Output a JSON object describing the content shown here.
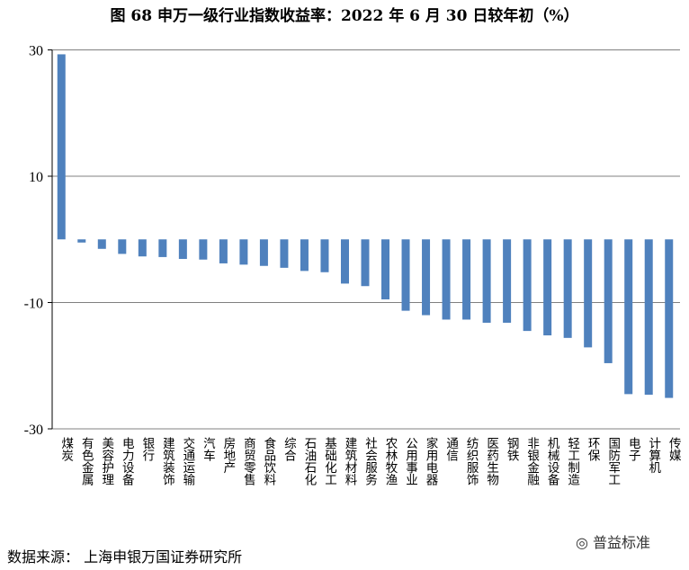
{
  "source": "数据来源：  上海申银万国证券研究所",
  "watermark": "普益标准",
  "chart_data": {
    "type": "bar",
    "title": "图 68  申万一级行业指数收益率：2022 年 6 月 30 日较年初（%）",
    "xlabel": "",
    "ylabel": "",
    "ylim": [
      -30,
      30
    ],
    "yticks": [
      30,
      10,
      -10,
      -30
    ],
    "grid": true,
    "bar_color": "#4f81bd",
    "categories": [
      "煤炭",
      "有色金属",
      "美容护理",
      "电力设备",
      "银行",
      "建筑装饰",
      "交通运输",
      "汽车",
      "房地产",
      "商贸零售",
      "食品饮料",
      "综合",
      "石油石化",
      "基础化工",
      "建筑材料",
      "社会服务",
      "农林牧渔",
      "公用事业",
      "家用电器",
      "通信",
      "纺织服饰",
      "医药生物",
      "钢铁",
      "非银金融",
      "机械设备",
      "轻工制造",
      "环保",
      "国防军工",
      "电子",
      "计算机",
      "传媒"
    ],
    "values": [
      29.3,
      -0.5,
      -1.5,
      -2.3,
      -2.7,
      -2.8,
      -3.1,
      -3.2,
      -3.8,
      -4.0,
      -4.2,
      -4.5,
      -5.0,
      -5.2,
      -7.0,
      -7.4,
      -9.5,
      -11.3,
      -12.0,
      -12.7,
      -12.7,
      -13.2,
      -13.2,
      -14.5,
      -15.2,
      -15.6,
      -17.1,
      -19.6,
      -24.5,
      -24.6,
      -25.1
    ]
  }
}
